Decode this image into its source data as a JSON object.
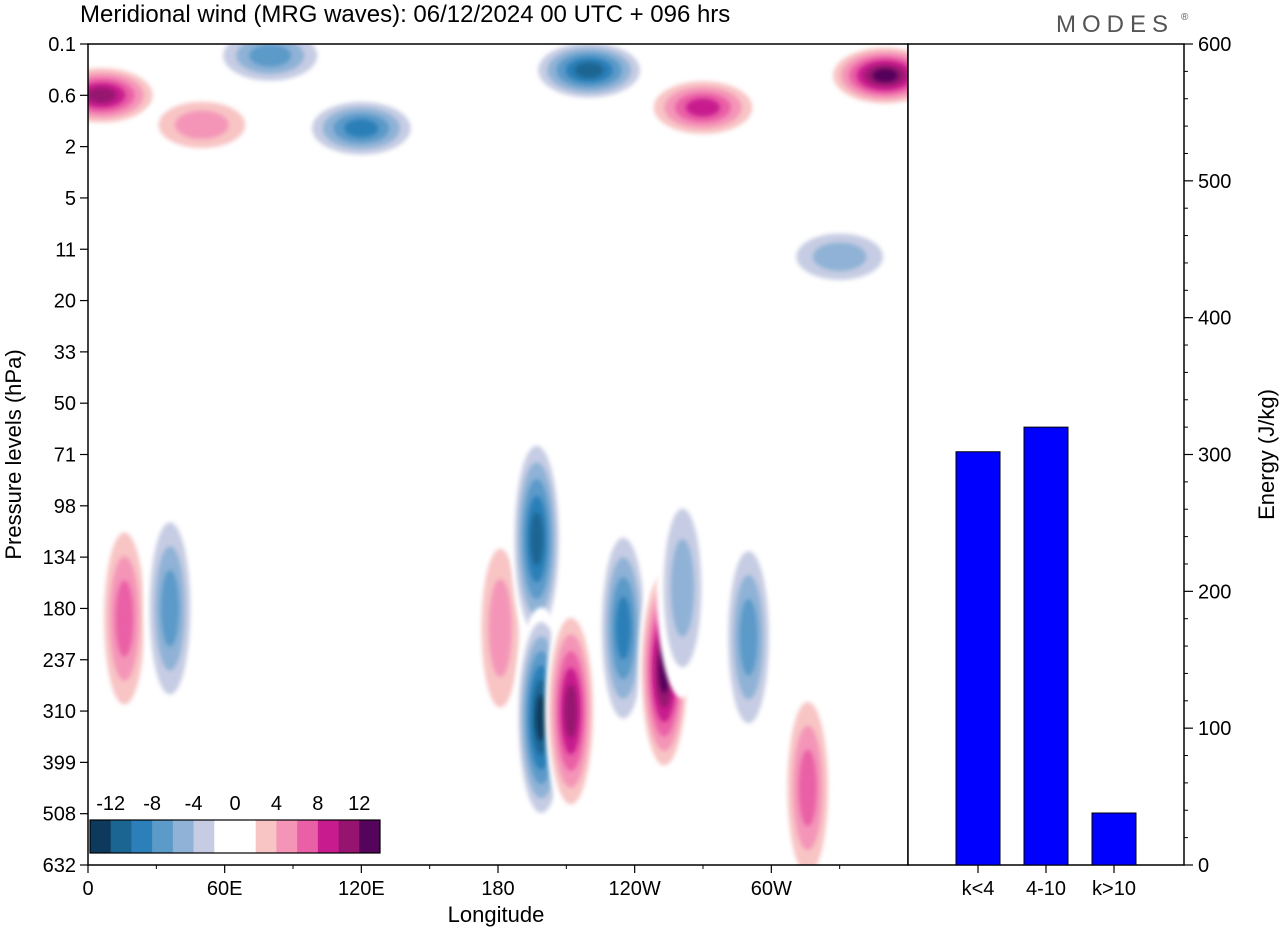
{
  "header": {
    "title": "Meridional wind (MRG waves):  06/12/2024  00 UTC  + 096 hrs",
    "logo": "MODES",
    "logo_mark": "®"
  },
  "chart_data": [
    {
      "type": "heatmap",
      "title": "Meridional wind (MRG waves):  06/12/2024  00 UTC  + 096 hrs",
      "xlabel": "Longitude",
      "ylabel": "Pressure levels (hPa)",
      "x_ticks": [
        "0",
        "60E",
        "120E",
        "180",
        "120W",
        "60W"
      ],
      "x_tick_values": [
        0,
        60,
        120,
        180,
        240,
        300
      ],
      "xlim": [
        0,
        360
      ],
      "y_ticks": [
        "0.1",
        "0.6",
        "2",
        "5",
        "11",
        "20",
        "33",
        "50",
        "71",
        "98",
        "134",
        "180",
        "237",
        "310",
        "399",
        "508",
        "632"
      ],
      "colorbar": {
        "labels": [
          "-12",
          "-8",
          "-4",
          "0",
          "4",
          "8",
          "12"
        ],
        "levels": [
          -14,
          -12,
          -10,
          -8,
          -6,
          -4,
          -2,
          0,
          2,
          4,
          6,
          8,
          10,
          12,
          14
        ],
        "colors": [
          "#0d3a5c",
          "#1b6592",
          "#2c7fb8",
          "#5b9ac9",
          "#8fb2d6",
          "#c6cce3",
          "#ffffff",
          "#ffffff",
          "#f8c4c4",
          "#f495b8",
          "#ea60a6",
          "#c81b8e",
          "#961470",
          "#55045c"
        ]
      },
      "features": [
        {
          "lon": 6,
          "lev": 0.6,
          "v": 13
        },
        {
          "lon": 50,
          "lev": 1.2,
          "v": 7
        },
        {
          "lon": 80,
          "lev": 0.15,
          "v": -9
        },
        {
          "lon": 120,
          "lev": 1.3,
          "v": -11
        },
        {
          "lon": 220,
          "lev": 0.25,
          "v": -12
        },
        {
          "lon": 270,
          "lev": 0.8,
          "v": 11
        },
        {
          "lon": 350,
          "lev": 0.3,
          "v": 14
        },
        {
          "lon": 330,
          "lev": 12,
          "v": -6
        },
        {
          "lon": 16,
          "lev": 190,
          "v": 8
        },
        {
          "lon": 36,
          "lev": 180,
          "v": -9
        },
        {
          "lon": 181,
          "lev": 200,
          "v": 7
        },
        {
          "lon": 197,
          "lev": 120,
          "v": -12
        },
        {
          "lon": 199,
          "lev": 320,
          "v": -14
        },
        {
          "lon": 212,
          "lev": 310,
          "v": 12
        },
        {
          "lon": 235,
          "lev": 200,
          "v": -11
        },
        {
          "lon": 253,
          "lev": 250,
          "v": 14
        },
        {
          "lon": 261,
          "lev": 160,
          "v": -7
        },
        {
          "lon": 290,
          "lev": 210,
          "v": -8
        },
        {
          "lon": 316,
          "lev": 450,
          "v": 8
        }
      ]
    },
    {
      "type": "bar",
      "categories": [
        "k<4",
        "4-10",
        "k>10"
      ],
      "values": [
        302,
        320,
        38
      ],
      "ylabel": "Energy (J/kg)",
      "ylim": [
        0,
        600
      ],
      "y_ticks": [
        "0",
        "100",
        "200",
        "300",
        "400",
        "500",
        "600"
      ],
      "bar_color": "#0000ff"
    }
  ]
}
